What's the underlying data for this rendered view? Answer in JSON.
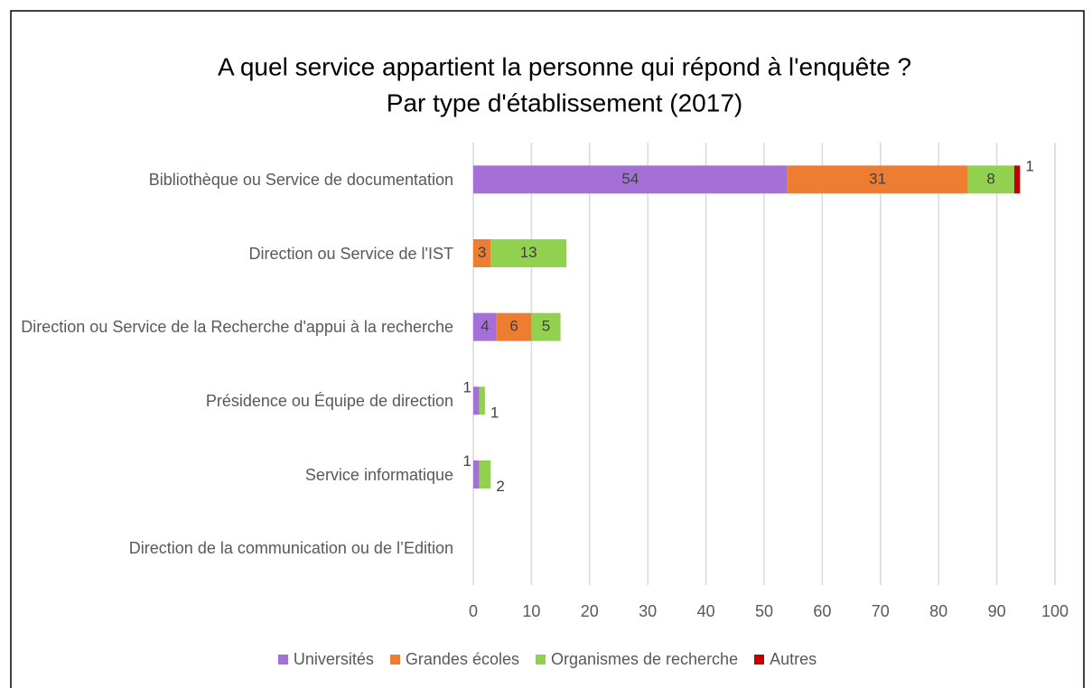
{
  "chart_data": {
    "type": "stacked-bar-horizontal",
    "title": "A quel service appartient la personne qui répond à l'enquête ?",
    "subtitle": "Par type d'établissement (2017)",
    "categories": [
      "Bibliothèque ou Service de documentation",
      "Direction ou Service de l'IST",
      "Direction ou Service de la Recherche d'appui à la recherche",
      "Présidence ou Équipe de direction",
      "Service informatique",
      "Direction de la communication ou de l’Edition"
    ],
    "series": [
      {
        "name": "Universités",
        "color": "#a56fd8",
        "values": [
          54,
          null,
          4,
          1,
          1,
          null
        ]
      },
      {
        "name": "Grandes écoles",
        "color": "#ed7d31",
        "values": [
          31,
          3,
          6,
          null,
          null,
          null
        ]
      },
      {
        "name": "Organismes de recherche",
        "color": "#92d050",
        "values": [
          8,
          13,
          5,
          1,
          2,
          null
        ]
      },
      {
        "name": "Autres",
        "color": "#c00000",
        "values": [
          1,
          null,
          null,
          null,
          null,
          null
        ]
      }
    ],
    "xlim": [
      0,
      100
    ],
    "xticks": [
      0,
      10,
      20,
      30,
      40,
      50,
      60,
      70,
      80,
      90,
      100
    ],
    "grid": true,
    "legend": "bottom"
  }
}
